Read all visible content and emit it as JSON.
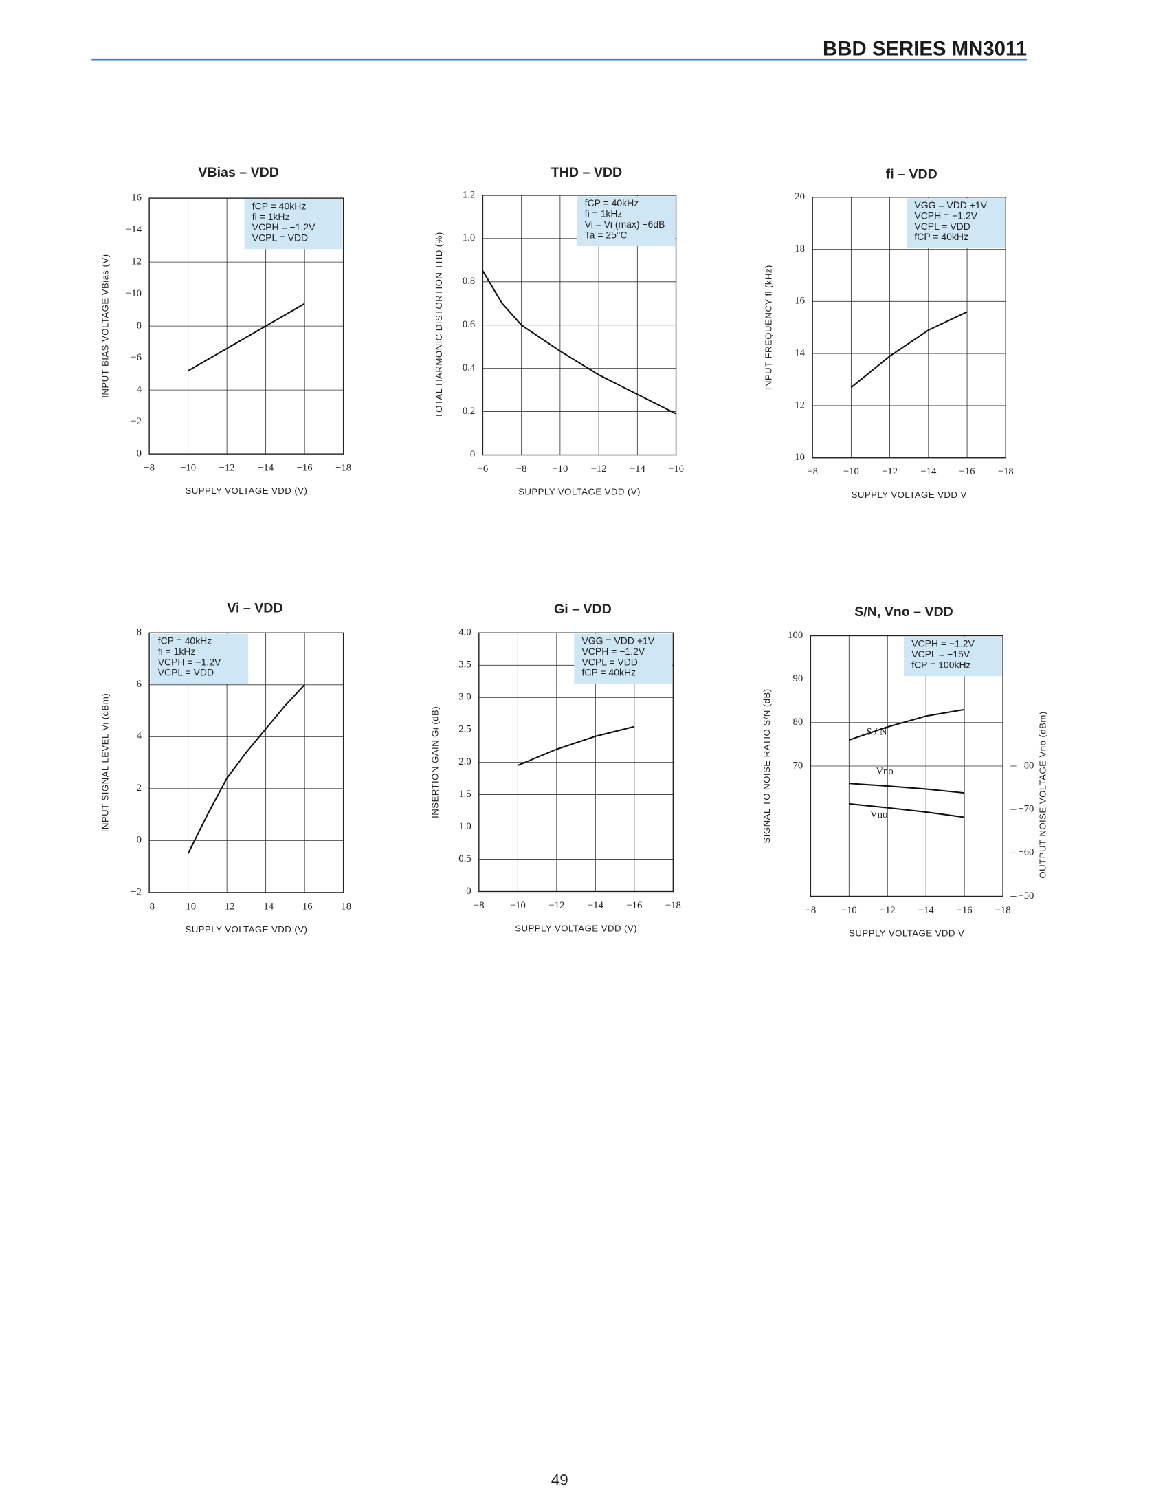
{
  "header": {
    "title": "BBD SERIES MN3011"
  },
  "page_number": "49",
  "chart_data": [
    {
      "type": "line",
      "title": "VBias – VDD",
      "x_label": "SUPPLY VOLTAGE VDD (V)",
      "y_label": "INPUT BIAS VOLTAGE VBias (V)",
      "notes": [
        "fCP = 40kHz",
        "fi = 1kHz",
        "VCPH = −1.2V",
        "VCPL = VDD"
      ],
      "notes_corner": "upper right",
      "grid": true,
      "xlim": [
        -8,
        -18
      ],
      "xticks": [
        {
          "value": -8,
          "label": "−8"
        },
        {
          "value": -10,
          "label": "−10"
        },
        {
          "value": -12,
          "label": "−12"
        },
        {
          "value": -14,
          "label": "−14"
        },
        {
          "value": -16,
          "label": "−16"
        },
        {
          "value": -18,
          "label": "−18"
        }
      ],
      "ylim": [
        0,
        -16
      ],
      "yticks": [
        0,
        {
          "value": -2,
          "label": "−2"
        },
        {
          "value": -4,
          "label": "−4"
        },
        {
          "value": -6,
          "label": "−6"
        },
        {
          "value": -8,
          "label": "−8"
        },
        {
          "value": -10,
          "label": "−10"
        },
        {
          "value": -12,
          "label": "−12"
        },
        {
          "value": -14,
          "label": "−14"
        },
        {
          "value": -16,
          "label": "−16"
        }
      ],
      "x": [
        -10,
        -12,
        -14,
        -16
      ],
      "series": [
        {
          "color": "#111111",
          "values": [
            -5.2,
            -6.6,
            -8.0,
            -9.4
          ]
        }
      ]
    },
    {
      "type": "line",
      "title": "THD – VDD",
      "x_label": "SUPPLY VOLTAGE VDD (V)",
      "y_label": "TOTAL HARMONIC DISTORTION THD (%)",
      "notes": [
        "fCP = 40kHz",
        "fi = 1kHz",
        "Vi = Vi (max) −6dB",
        "Ta = 25°C"
      ],
      "notes_corner": "upper right",
      "grid": true,
      "xlim": [
        -6,
        -16
      ],
      "xticks": [
        {
          "value": -6,
          "label": "−6"
        },
        {
          "value": -8,
          "label": "−8"
        },
        {
          "value": -10,
          "label": "−10"
        },
        {
          "value": -12,
          "label": "−12"
        },
        {
          "value": -14,
          "label": "−14"
        },
        {
          "value": -16,
          "label": "−16"
        }
      ],
      "ylim": [
        0,
        1.2
      ],
      "yticks": [
        0,
        0.2,
        0.4,
        0.6,
        0.8,
        {
          "value": 1,
          "label": "1.0"
        },
        1.2
      ],
      "x": [
        -6,
        -7,
        -8,
        -10,
        -12,
        -14,
        -16
      ],
      "series": [
        {
          "color": "#111111",
          "values": [
            0.85,
            0.7,
            0.6,
            0.48,
            0.37,
            0.28,
            0.19
          ]
        }
      ]
    },
    {
      "type": "line",
      "title": "fi – VDD",
      "x_label": "SUPPLY VOLTAGE VDD V",
      "y_label": "INPUT FREQUENCY fi (kHz)",
      "notes": [
        "VGG = VDD +1V",
        "VCPH = −1.2V",
        "VCPL = VDD",
        "fCP = 40kHz"
      ],
      "notes_corner": "upper right",
      "grid": true,
      "xlim": [
        -8,
        -18
      ],
      "xticks": [
        {
          "value": -8,
          "label": "−8"
        },
        {
          "value": -10,
          "label": "−10"
        },
        {
          "value": -12,
          "label": "−12"
        },
        {
          "value": -14,
          "label": "−14"
        },
        {
          "value": -16,
          "label": "−16"
        },
        {
          "value": -18,
          "label": "−18"
        }
      ],
      "ylim": [
        10,
        20
      ],
      "yticks": [
        10,
        12,
        14,
        16,
        18,
        20
      ],
      "x": [
        -10,
        -12,
        -14,
        -16
      ],
      "series": [
        {
          "color": "#111111",
          "values": [
            12.7,
            13.9,
            14.9,
            15.6
          ]
        }
      ]
    },
    {
      "type": "line",
      "title": "Vi – VDD",
      "x_label": "SUPPLY VOLTAGE VDD (V)",
      "y_label": "INPUT SIGNAL LEVEL Vi (dBm)",
      "notes": [
        "fCP = 40kHz",
        "fi = 1kHz",
        "VCPH = −1.2V",
        "VCPL = VDD"
      ],
      "notes_corner": "upper left",
      "grid": true,
      "xlim": [
        -8,
        -18
      ],
      "xticks": [
        {
          "value": -8,
          "label": "−8"
        },
        {
          "value": -10,
          "label": "−10"
        },
        {
          "value": -12,
          "label": "−12"
        },
        {
          "value": -14,
          "label": "−14"
        },
        {
          "value": -16,
          "label": "−16"
        },
        {
          "value": -18,
          "label": "−18"
        }
      ],
      "ylim": [
        -2,
        8
      ],
      "yticks": [
        {
          "value": -2,
          "label": "−2"
        },
        0,
        2,
        4,
        6,
        8
      ],
      "x": [
        -10,
        -11,
        -12,
        -13,
        -14,
        -15,
        -16
      ],
      "series": [
        {
          "color": "#111111",
          "values": [
            -0.5,
            1.0,
            2.4,
            3.4,
            4.3,
            5.2,
            6.0
          ]
        }
      ]
    },
    {
      "type": "line",
      "title": "Gi – VDD",
      "x_label": "SUPPLY VOLTAGE VDD (V)",
      "y_label": "INSERTION GAIN Gi (dB)",
      "notes": [
        "VGG = VDD +1V",
        "VCPH = −1.2V",
        "VCPL = VDD",
        "fCP = 40kHz"
      ],
      "notes_corner": "upper right",
      "grid": true,
      "xlim": [
        -8,
        -18
      ],
      "xticks": [
        {
          "value": -8,
          "label": "−8"
        },
        {
          "value": -10,
          "label": "−10"
        },
        {
          "value": -12,
          "label": "−12"
        },
        {
          "value": -14,
          "label": "−14"
        },
        {
          "value": -16,
          "label": "−16"
        },
        {
          "value": -18,
          "label": "−18"
        }
      ],
      "ylim": [
        0,
        4
      ],
      "yticks": [
        0,
        0.5,
        {
          "value": 1,
          "label": "1.0"
        },
        1.5,
        {
          "value": 2,
          "label": "2.0"
        },
        2.5,
        {
          "value": 3,
          "label": "3.0"
        },
        3.5,
        {
          "value": 4,
          "label": "4.0"
        }
      ],
      "x": [
        -10,
        -12,
        -14,
        -16
      ],
      "series": [
        {
          "color": "#111111",
          "values": [
            1.95,
            2.2,
            2.4,
            2.55
          ]
        }
      ]
    },
    {
      "type": "line",
      "title": "S/N, Vno – VDD",
      "x_label": "SUPPLY VOLTAGE VDD V",
      "y_label": "SIGNAL TO NOISE RATIO S/N (dB)",
      "y2_label": "OUTPUT NOISE VOLTAGE Vno (dBm)",
      "notes": [
        "VCPH = −1.2V",
        "VCPL = −15V",
        "fCP = 100kHz"
      ],
      "notes_corner": "upper right",
      "grid": true,
      "xlim": [
        -8,
        -18
      ],
      "xticks": [
        {
          "value": -8,
          "label": "−8"
        },
        {
          "value": -10,
          "label": "−10"
        },
        {
          "value": -12,
          "label": "−12"
        },
        {
          "value": -14,
          "label": "−14"
        },
        {
          "value": -16,
          "label": "−16"
        },
        {
          "value": -18,
          "label": "−18"
        }
      ],
      "ylim": [
        40,
        100
      ],
      "yticks": [
        70,
        80,
        90,
        100
      ],
      "y2lim": [
        -50,
        -110
      ],
      "y2ticks": [
        {
          "value": -50,
          "label": "−50"
        },
        {
          "value": -60,
          "label": "−60"
        },
        {
          "value": -70,
          "label": "−70"
        },
        {
          "value": -80,
          "label": "−80"
        }
      ],
      "x": [
        -10,
        -12,
        -14,
        -16
      ],
      "series": [
        {
          "name": "S / N",
          "color": "#111111",
          "values": [
            76,
            79,
            81.5,
            83
          ]
        },
        {
          "name": "Vno",
          "color": "#111111",
          "axis": "y2",
          "values": [
            -76,
            -75.4,
            -74.7,
            -73.8
          ]
        },
        {
          "name": "Vno",
          "color": "#111111",
          "axis": "y2",
          "values": [
            -71.3,
            -70.4,
            -69.4,
            -68.2
          ]
        }
      ]
    }
  ]
}
